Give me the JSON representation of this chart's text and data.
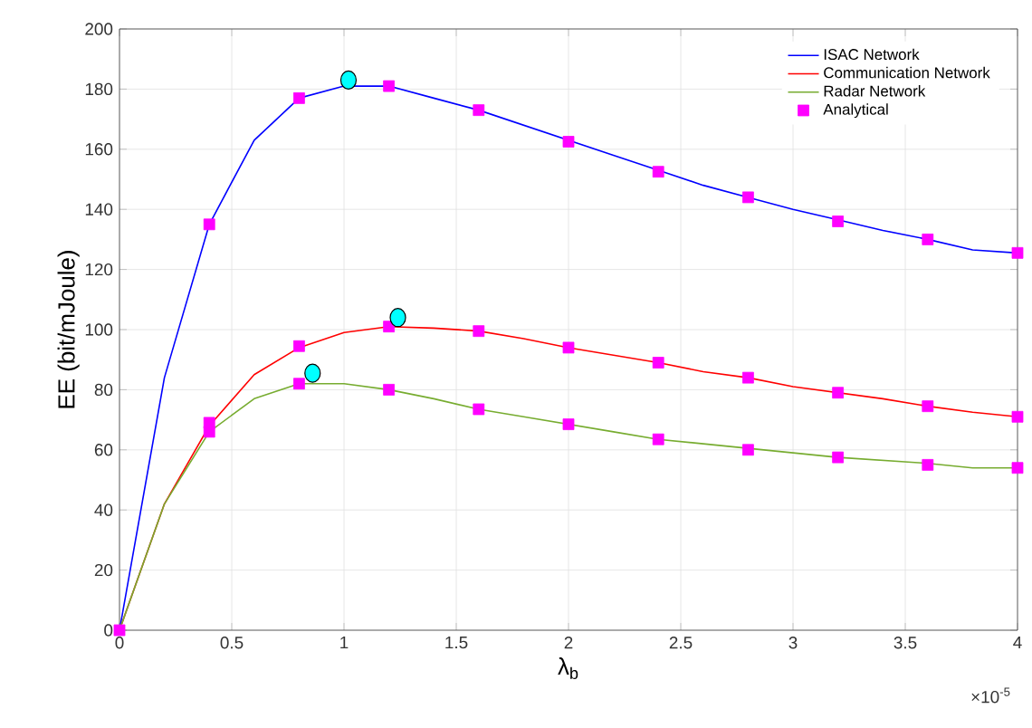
{
  "chart_data": {
    "type": "line",
    "xlabel": "λ$_{b}$",
    "ylabel": "EE (bit/mJoule)",
    "annotations": [
      "×10$^{-5}$"
    ],
    "xlim": [
      0,
      4
    ],
    "ylim": [
      0,
      200
    ],
    "xticks": [
      0,
      0.5,
      1,
      1.5,
      2,
      2.5,
      3,
      3.5,
      4
    ],
    "yticks": [
      0,
      20,
      40,
      60,
      80,
      100,
      120,
      140,
      160,
      180,
      200
    ],
    "grid": true,
    "legend": "top right",
    "series": [
      {
        "name": "ISAC Network",
        "marker": "none",
        "color": "#0000ff",
        "x": [
          0,
          0.2,
          0.4,
          0.6,
          0.8,
          1.0,
          1.2,
          1.4,
          1.6,
          1.8,
          2.0,
          2.2,
          2.4,
          2.6,
          2.8,
          3.0,
          3.2,
          3.4,
          3.6,
          3.8,
          4.0
        ],
        "values": [
          0,
          84,
          135,
          163,
          177,
          181,
          181,
          177,
          173,
          168,
          163,
          158,
          153,
          148,
          144,
          140,
          136.5,
          133,
          130,
          126.5,
          125.5
        ]
      },
      {
        "name": "Communication Network",
        "marker": "none",
        "color": "#ff0000",
        "x": [
          0,
          0.2,
          0.4,
          0.6,
          0.8,
          1.0,
          1.2,
          1.4,
          1.6,
          1.8,
          2.0,
          2.2,
          2.4,
          2.6,
          2.8,
          3.0,
          3.2,
          3.4,
          3.6,
          3.8,
          4.0
        ],
        "values": [
          0,
          42,
          68,
          85,
          94,
          99,
          101,
          100.5,
          99.5,
          97,
          94,
          91.5,
          89,
          86,
          84,
          81,
          79,
          77,
          74.5,
          72.5,
          71
        ]
      },
      {
        "name": "Radar Network",
        "marker": "none",
        "color": "#77ac30",
        "x": [
          0,
          0.2,
          0.4,
          0.6,
          0.8,
          1.0,
          1.2,
          1.4,
          1.6,
          1.8,
          2.0,
          2.2,
          2.4,
          2.6,
          2.8,
          3.0,
          3.2,
          3.4,
          3.6,
          3.8,
          4.0
        ],
        "values": [
          0,
          42,
          66,
          77,
          82,
          82,
          80,
          77,
          73.5,
          71,
          68.5,
          66,
          63.5,
          62,
          60.5,
          59,
          57.5,
          56.5,
          55.5,
          54,
          54
        ]
      },
      {
        "name": "Analytical",
        "type": "scatter",
        "marker": "square",
        "color": "#ff00ff",
        "x": [
          0,
          0.4,
          0.8,
          1.2,
          1.6,
          2.0,
          2.4,
          2.8,
          3.2,
          3.6,
          4.0,
          0.4,
          0.8,
          1.2,
          1.6,
          2.0,
          2.4,
          2.8,
          3.2,
          3.6,
          4.0,
          0.4,
          0.8,
          1.2,
          1.6,
          2.0,
          2.4,
          2.8,
          3.2,
          3.6,
          4.0
        ],
        "values": [
          0,
          135,
          177,
          181,
          173,
          162.5,
          152.5,
          144,
          136,
          130,
          125.5,
          69,
          94.5,
          101,
          99.5,
          94,
          89,
          84,
          79,
          74.5,
          71,
          66,
          82,
          80,
          73.5,
          68.5,
          63.5,
          60,
          57.5,
          55,
          54
        ]
      },
      {
        "type": "scatter",
        "marker": "circle",
        "color": "#00ffff",
        "x": [
          1.02,
          1.24,
          0.86
        ],
        "values": [
          183,
          104,
          85.5
        ]
      }
    ]
  }
}
